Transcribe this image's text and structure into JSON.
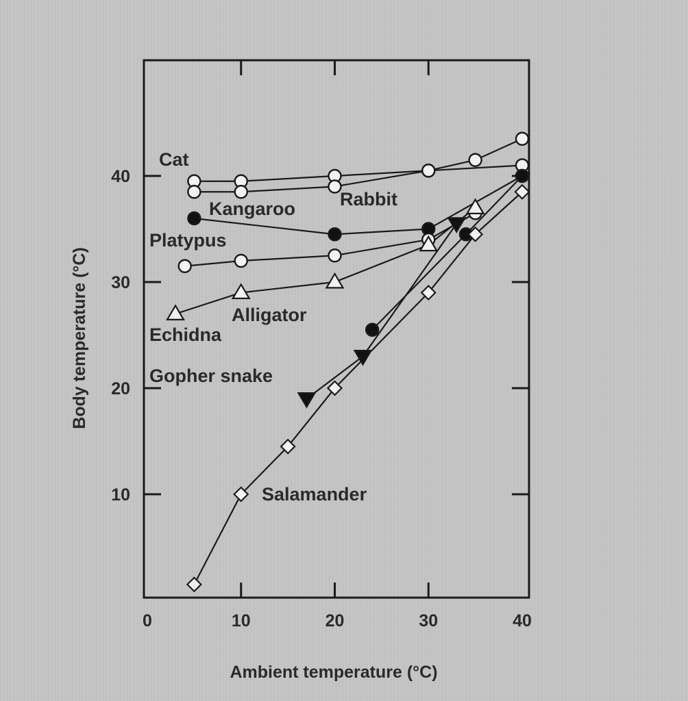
{
  "chart_data": {
    "type": "line",
    "xlabel": "Ambient temperature (°C)",
    "ylabel": "Body temperature (°C)",
    "xlim": [
      0,
      40
    ],
    "ylim": [
      0,
      46
    ],
    "x_ticks": [
      "0",
      "10",
      "20",
      "30",
      "40"
    ],
    "y_ticks": [
      "10",
      "20",
      "30",
      "40"
    ],
    "y_tick_values": [
      10,
      20,
      30,
      40
    ],
    "x_tick_values": [
      0,
      10,
      20,
      30,
      40
    ],
    "grid": false,
    "series": [
      {
        "name": "Cat",
        "marker": "open-circle",
        "x": [
          5,
          10,
          20,
          30,
          35,
          40
        ],
        "y": [
          39.5,
          39.5,
          40.0,
          40.5,
          41.5,
          43.5
        ]
      },
      {
        "name": "Rabbit",
        "marker": "open-circle",
        "x": [
          5,
          10,
          20,
          30,
          40
        ],
        "y": [
          38.5,
          38.5,
          39.0,
          40.5,
          41.0
        ]
      },
      {
        "name": "Kangaroo",
        "marker": "filled-circle",
        "x": [
          5,
          20,
          30,
          40
        ],
        "y": [
          36.0,
          34.5,
          35.0,
          40.0
        ]
      },
      {
        "name": "Platypus",
        "marker": "open-circle",
        "x": [
          4,
          10,
          20,
          30,
          35
        ],
        "y": [
          31.5,
          32.0,
          32.5,
          34.0,
          36.5
        ]
      },
      {
        "name": "Echidna",
        "marker": "open-triangle",
        "x": [
          3,
          10,
          20,
          30,
          35
        ],
        "y": [
          27.0,
          29.0,
          30.0,
          33.5,
          37.0
        ]
      },
      {
        "name": "Alligator",
        "marker": "filled-circle",
        "x": [
          24,
          34,
          40
        ],
        "y": [
          25.5,
          34.5,
          40.0
        ]
      },
      {
        "name": "Gopher snake",
        "marker": "filled-triangle",
        "x": [
          17,
          23,
          33
        ],
        "y": [
          19.0,
          23.0,
          35.5
        ]
      },
      {
        "name": "Salamander",
        "marker": "open-diamond",
        "x": [
          5,
          10,
          15,
          20,
          30,
          35,
          40
        ],
        "y": [
          1.5,
          10.0,
          14.5,
          20.0,
          29.0,
          34.5,
          38.5
        ]
      }
    ]
  }
}
